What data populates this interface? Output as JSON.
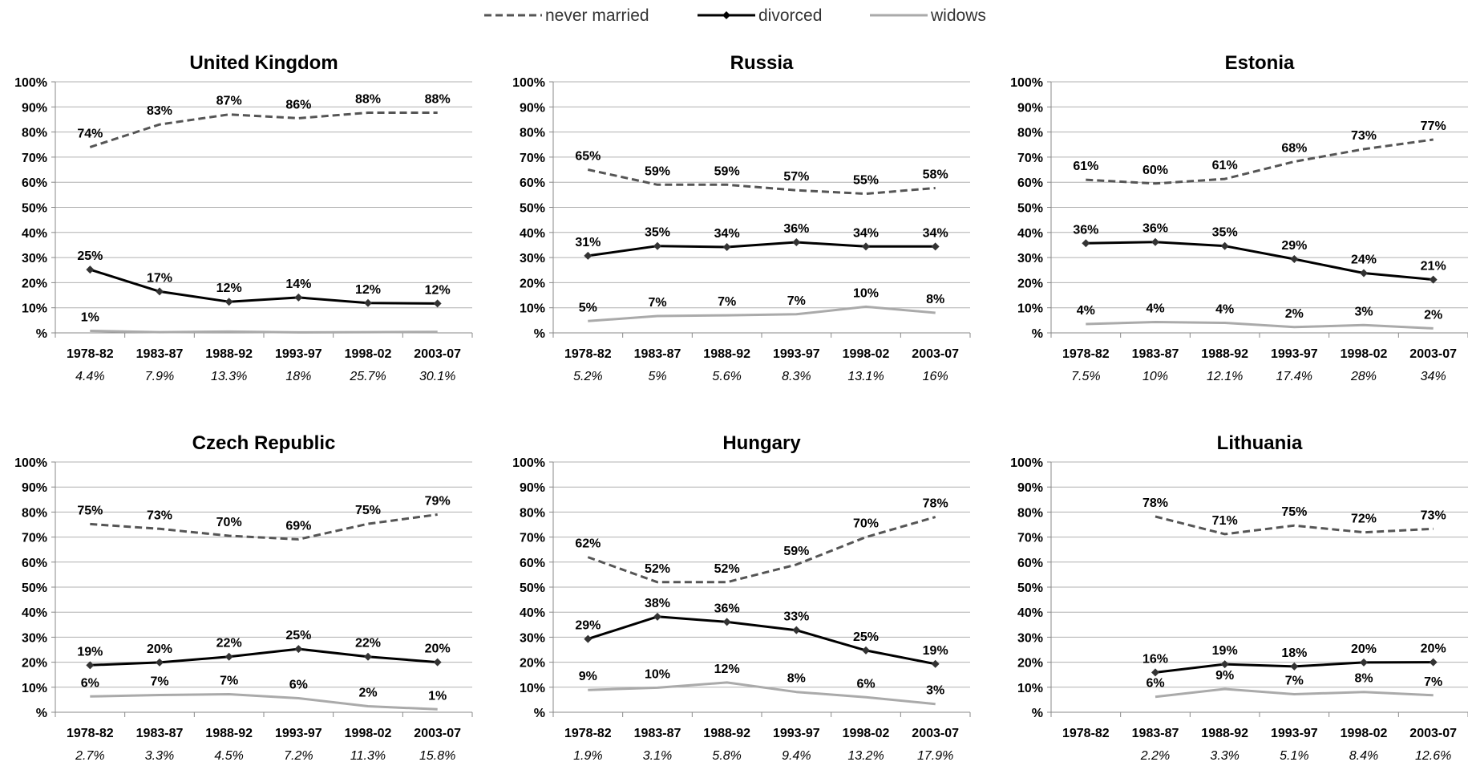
{
  "legend": {
    "position": "top-center",
    "entries": [
      {
        "label": "never married",
        "color": "#555555",
        "style": "dashed"
      },
      {
        "label": "divorced",
        "color": "#000000",
        "style": "solid-diamond"
      },
      {
        "label": "widows",
        "color": "#aaaaaa",
        "style": "solid"
      }
    ]
  },
  "chart_data": [
    {
      "type": "line",
      "title": "United Kingdom",
      "categories": [
        "1978-82",
        "1983-87",
        "1988-92",
        "1993-97",
        "1998-02",
        "2003-07"
      ],
      "sublabels": [
        "4.4%",
        "7.9%",
        "13.3%",
        "18%",
        "25.7%",
        "30.1%"
      ],
      "ylim": [
        0,
        100
      ],
      "yticks": [
        "%",
        "10%",
        "20%",
        "30%",
        "40%",
        "50%",
        "60%",
        "70%",
        "80%",
        "90%",
        "100%"
      ],
      "grid": true,
      "series": [
        {
          "name": "never married",
          "values": [
            74,
            83,
            87,
            85.5,
            87.7,
            87.7
          ],
          "labels": [
            "74%",
            "83%",
            "87%",
            "86%",
            "88%",
            "88%"
          ]
        },
        {
          "name": "divorced",
          "values": [
            25.2,
            16.5,
            12.4,
            14.1,
            11.9,
            11.7
          ],
          "labels": [
            "25%",
            "17%",
            "12%",
            "14%",
            "12%",
            "12%"
          ]
        },
        {
          "name": "widows",
          "values": [
            0.8,
            0.3,
            0.5,
            0.2,
            0.3,
            0.4
          ],
          "labels": [
            "1%",
            "",
            "",
            "",
            "",
            ""
          ]
        }
      ]
    },
    {
      "type": "line",
      "title": "Russia",
      "categories": [
        "1978-82",
        "1983-87",
        "1988-92",
        "1993-97",
        "1998-02",
        "2003-07"
      ],
      "sublabels": [
        "5.2%",
        "5%",
        "5.6%",
        "8.3%",
        "13.1%",
        "16%"
      ],
      "ylim": [
        0,
        100
      ],
      "yticks": [
        "%",
        "10%",
        "20%",
        "30%",
        "40%",
        "50%",
        "60%",
        "70%",
        "80%",
        "90%",
        "100%"
      ],
      "grid": true,
      "series": [
        {
          "name": "never married",
          "values": [
            65,
            59,
            59,
            56.8,
            55.4,
            57.7
          ],
          "labels": [
            "65%",
            "59%",
            "59%",
            "57%",
            "55%",
            "58%"
          ]
        },
        {
          "name": "divorced",
          "values": [
            30.7,
            34.6,
            34.2,
            36.1,
            34.4,
            34.4
          ],
          "labels": [
            "31%",
            "35%",
            "34%",
            "36%",
            "34%",
            "34%"
          ]
        },
        {
          "name": "widows",
          "values": [
            4.7,
            6.7,
            7.0,
            7.4,
            10.4,
            8.0
          ],
          "labels": [
            "5%",
            "7%",
            "7%",
            "7%",
            "10%",
            "8%"
          ]
        }
      ]
    },
    {
      "type": "line",
      "title": "Estonia",
      "categories": [
        "1978-82",
        "1983-87",
        "1988-92",
        "1993-97",
        "1998-02",
        "2003-07"
      ],
      "sublabels": [
        "7.5%",
        "10%",
        "12.1%",
        "17.4%",
        "28%",
        "34%"
      ],
      "ylim": [
        0,
        100
      ],
      "yticks": [
        "%",
        "10%",
        "20%",
        "30%",
        "40%",
        "50%",
        "60%",
        "70%",
        "80%",
        "90%",
        "100%"
      ],
      "grid": true,
      "series": [
        {
          "name": "never married",
          "values": [
            61,
            59.5,
            61.3,
            68.2,
            73.2,
            77.0
          ],
          "labels": [
            "61%",
            "60%",
            "61%",
            "68%",
            "73%",
            "77%"
          ]
        },
        {
          "name": "divorced",
          "values": [
            35.7,
            36.2,
            34.6,
            29.4,
            23.8,
            21.2
          ],
          "labels": [
            "36%",
            "36%",
            "35%",
            "29%",
            "24%",
            "21%"
          ]
        },
        {
          "name": "widows",
          "values": [
            3.5,
            4.3,
            4.0,
            2.3,
            3.1,
            1.8
          ],
          "labels": [
            "4%",
            "4%",
            "4%",
            "2%",
            "3%",
            "2%"
          ]
        }
      ]
    },
    {
      "type": "line",
      "title": "Czech Republic",
      "categories": [
        "1978-82",
        "1983-87",
        "1988-92",
        "1993-97",
        "1998-02",
        "2003-07"
      ],
      "sublabels": [
        "2.7%",
        "3.3%",
        "4.5%",
        "7.2%",
        "11.3%",
        "15.8%"
      ],
      "ylim": [
        0,
        100
      ],
      "yticks": [
        "%",
        "10%",
        "20%",
        "30%",
        "40%",
        "50%",
        "60%",
        "70%",
        "80%",
        "90%",
        "100%"
      ],
      "grid": true,
      "series": [
        {
          "name": "never married",
          "values": [
            75.2,
            73.3,
            70.5,
            69.1,
            75.3,
            79.0
          ],
          "labels": [
            "75%",
            "73%",
            "70%",
            "69%",
            "75%",
            "79%"
          ]
        },
        {
          "name": "divorced",
          "values": [
            18.8,
            19.9,
            22.2,
            25.3,
            22.2,
            20.0
          ],
          "labels": [
            "19%",
            "20%",
            "22%",
            "25%",
            "22%",
            "20%"
          ]
        },
        {
          "name": "widows",
          "values": [
            6.3,
            6.9,
            7.2,
            5.6,
            2.4,
            1.2
          ],
          "labels": [
            "6%",
            "7%",
            "7%",
            "6%",
            "2%",
            "1%"
          ]
        }
      ]
    },
    {
      "type": "line",
      "title": "Hungary",
      "categories": [
        "1978-82",
        "1983-87",
        "1988-92",
        "1993-97",
        "1998-02",
        "2003-07"
      ],
      "sublabels": [
        "1.9%",
        "3.1%",
        "5.8%",
        "9.4%",
        "13.2%",
        "17.9%"
      ],
      "ylim": [
        0,
        100
      ],
      "yticks": [
        "%",
        "10%",
        "20%",
        "30%",
        "40%",
        "50%",
        "60%",
        "70%",
        "80%",
        "90%",
        "100%"
      ],
      "grid": true,
      "series": [
        {
          "name": "never married",
          "values": [
            62,
            52,
            52,
            59,
            70,
            78
          ],
          "labels": [
            "62%",
            "52%",
            "52%",
            "59%",
            "70%",
            "78%"
          ]
        },
        {
          "name": "divorced",
          "values": [
            29.3,
            38.2,
            36.1,
            32.8,
            24.7,
            19.3
          ],
          "labels": [
            "29%",
            "38%",
            "36%",
            "33%",
            "25%",
            "19%"
          ]
        },
        {
          "name": "widows",
          "values": [
            8.9,
            9.8,
            11.9,
            8.1,
            6.0,
            3.3
          ],
          "labels": [
            "9%",
            "10%",
            "12%",
            "8%",
            "6%",
            "3%"
          ]
        }
      ]
    },
    {
      "type": "line",
      "title": "Lithuania",
      "categories": [
        "1978-82",
        "1983-87",
        "1988-92",
        "1993-97",
        "1998-02",
        "2003-07"
      ],
      "sublabels": [
        "",
        "2.2%",
        "3.3%",
        "5.1%",
        "8.4%",
        "12.6%"
      ],
      "ylim": [
        0,
        100
      ],
      "yticks": [
        "%",
        "10%",
        "20%",
        "30%",
        "40%",
        "50%",
        "60%",
        "70%",
        "80%",
        "90%",
        "100%"
      ],
      "grid": true,
      "series": [
        {
          "name": "never married",
          "values": [
            null,
            78.2,
            71.2,
            74.6,
            71.9,
            73.3
          ],
          "labels": [
            "",
            "78%",
            "71%",
            "75%",
            "72%",
            "73%"
          ]
        },
        {
          "name": "divorced",
          "values": [
            null,
            15.9,
            19.2,
            18.3,
            19.9,
            20.0
          ],
          "labels": [
            "",
            "16%",
            "19%",
            "18%",
            "20%",
            "20%"
          ]
        },
        {
          "name": "widows",
          "values": [
            null,
            6.2,
            9.3,
            7.2,
            8.1,
            6.8
          ],
          "labels": [
            "",
            "6%",
            "9%",
            "7%",
            "8%",
            "7%"
          ]
        }
      ]
    }
  ]
}
